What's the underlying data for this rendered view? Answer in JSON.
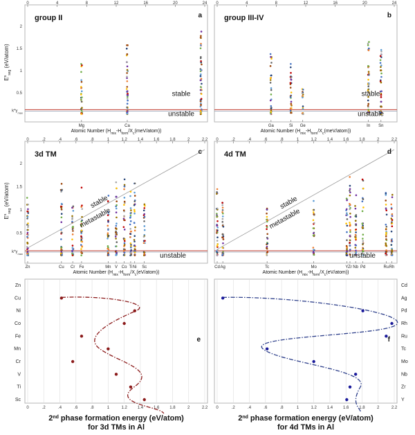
{
  "figure": {
    "ylabel_seg": "E",
    "ylabel_seg_sup": "s",
    "ylabel_seg_sub": "seg",
    "ylabel_seg_unit": "(eV/atom)",
    "kgamma_label": "k*γ",
    "kgamma_sub": "max"
  },
  "chart_data": [
    {
      "type": "scatter",
      "panel": "a",
      "title": "group II",
      "xlabel": "Atomic Number (H",
      "xlabel_sub1": "mix",
      "xlabel_mid": "-H",
      "xlabel_sub2": "form",
      "xlabel_mid2": "/X",
      "xlabel_sub3": "c",
      "xlabel_end": "(meV/atom))",
      "top_ticks": [
        "0",
        "4",
        "8",
        "12",
        "16",
        "20",
        "24"
      ],
      "yticks": [
        "0.5",
        "1",
        "1.5",
        "2"
      ],
      "elements": [
        "Mg",
        "Ca"
      ],
      "regions": [
        "stable",
        "unstable"
      ],
      "threshold_y": 0.12,
      "ylim": [
        0,
        2.3
      ],
      "xlim": [
        0,
        24
      ],
      "columns": [
        {
          "x": 7.3,
          "max": 1.18,
          "n": 28
        },
        {
          "x": 13.5,
          "max": 1.6,
          "n": 45
        },
        {
          "x": 23.5,
          "max": 1.9,
          "n": 60
        }
      ]
    },
    {
      "type": "scatter",
      "panel": "b",
      "title": "group III-IV",
      "xlabel": "Atomic Number (H",
      "xlabel_sub1": "mix",
      "xlabel_mid": "-H",
      "xlabel_sub2": "form",
      "xlabel_mid2": "/X",
      "xlabel_sub3": "c",
      "xlabel_end": "(meV/atom))",
      "top_ticks": [
        "0",
        "4",
        "8",
        "12",
        "16",
        "20",
        "24"
      ],
      "elements": [
        "Ga",
        "Si",
        "Ge",
        "In",
        "Sn"
      ],
      "regions": [
        "stable",
        "unstable"
      ],
      "threshold_y": 0.12,
      "ylim": [
        0,
        2.3
      ],
      "xlim": [
        0,
        24
      ],
      "columns": [
        {
          "x": 7.3,
          "max": 1.38,
          "n": 32
        },
        {
          "x": 10.0,
          "max": 1.25,
          "n": 30
        },
        {
          "x": 11.6,
          "max": 0.6,
          "n": 18
        },
        {
          "x": 20.5,
          "max": 1.68,
          "n": 42
        },
        {
          "x": 22.2,
          "max": 1.52,
          "n": 40
        }
      ]
    },
    {
      "type": "scatter",
      "panel": "c",
      "title": "3d TM",
      "xlabel": "Atomic Number (H",
      "xlabel_sub1": "mix",
      "xlabel_mid": "-H",
      "xlabel_sub2": "form",
      "xlabel_mid2": "/X",
      "xlabel_sub3": "c",
      "xlabel_end": "(eV/atom))",
      "top_ticks": [
        "0",
        ".2",
        ".4",
        ".6",
        ".8",
        "1",
        "1.2",
        "1.4",
        "1.6",
        "1.8",
        "2",
        "2.2"
      ],
      "yticks": [
        "0.5",
        "1",
        "1.5",
        "2"
      ],
      "elements": [
        "Zn",
        "Cu",
        "Cr",
        "Fe",
        "Mn",
        "V",
        "Co",
        "Ti",
        "Ni",
        "Sc"
      ],
      "element_x": [
        0.0,
        0.42,
        0.56,
        0.67,
        1.0,
        1.1,
        1.2,
        1.28,
        1.33,
        1.45
      ],
      "regions": [
        "stable",
        "metastable",
        "unstable"
      ],
      "threshold_y": 0.12,
      "ylim": [
        0,
        2.3
      ],
      "xlim": [
        0,
        2.2
      ],
      "diagonal": [
        [
          0,
          0.18
        ],
        [
          2.2,
          2.3
        ]
      ],
      "columns": [
        {
          "x": 0.0,
          "max": 1.3,
          "n": 38
        },
        {
          "x": 0.42,
          "max": 1.6,
          "n": 40
        },
        {
          "x": 0.56,
          "max": 1.1,
          "n": 30
        },
        {
          "x": 0.67,
          "max": 1.5,
          "n": 34
        },
        {
          "x": 1.0,
          "max": 1.32,
          "n": 32
        },
        {
          "x": 1.1,
          "max": 1.6,
          "n": 38
        },
        {
          "x": 1.2,
          "max": 1.7,
          "n": 40
        },
        {
          "x": 1.28,
          "max": 1.42,
          "n": 34
        },
        {
          "x": 1.33,
          "max": 1.6,
          "n": 36
        },
        {
          "x": 1.45,
          "max": 1.2,
          "n": 30
        }
      ]
    },
    {
      "type": "scatter",
      "panel": "d",
      "title": "4d TM",
      "xlabel": "Atomic Number (H",
      "xlabel_sub1": "mix",
      "xlabel_mid": "-H",
      "xlabel_sub2": "form",
      "xlabel_mid2": "/X",
      "xlabel_sub3": "c",
      "xlabel_end": "(eV/atom))",
      "top_ticks": [
        "0",
        ".2",
        ".4",
        ".6",
        ".8",
        "1",
        "1.2",
        "1.4",
        "1.6",
        "1.8",
        "2",
        "2.2"
      ],
      "elements": [
        "Cd",
        "Ag",
        "Tc",
        "Mo",
        "Y",
        "Zr",
        "Nb",
        "Pd",
        "Ru",
        "Rh"
      ],
      "element_x": [
        0.0,
        0.07,
        0.62,
        1.2,
        1.61,
        1.65,
        1.72,
        1.81,
        2.1,
        2.17
      ],
      "regions": [
        "stable",
        "metastable",
        "unstable"
      ],
      "threshold_y": 0.12,
      "ylim": [
        0,
        2.3
      ],
      "xlim": [
        0,
        2.2
      ],
      "diagonal": [
        [
          0,
          0.15
        ],
        [
          2.2,
          2.3
        ]
      ],
      "columns": [
        {
          "x": 0.0,
          "max": 1.45,
          "n": 40
        },
        {
          "x": 0.07,
          "max": 1.2,
          "n": 36
        },
        {
          "x": 0.62,
          "max": 1.1,
          "n": 30
        },
        {
          "x": 1.2,
          "max": 1.25,
          "n": 30
        },
        {
          "x": 1.61,
          "max": 1.3,
          "n": 34
        },
        {
          "x": 1.65,
          "max": 1.8,
          "n": 36
        },
        {
          "x": 1.72,
          "max": 1.4,
          "n": 32
        },
        {
          "x": 1.81,
          "max": 1.7,
          "n": 34
        },
        {
          "x": 2.1,
          "max": 1.4,
          "n": 34
        },
        {
          "x": 2.17,
          "max": 1.4,
          "n": 34
        }
      ]
    },
    {
      "type": "scatter",
      "panel": "e",
      "xlabel_line1": "2",
      "xlabel_line1_sup": "nd",
      "xlabel_line1_rest": " phase formation energy (eV/atom)",
      "xlabel_line2": "for 3d TMs in Al",
      "xticks": [
        "0",
        ".2",
        ".4",
        ".6",
        ".8",
        "1",
        "1.2",
        "1.4",
        "1.6",
        "1.8",
        "2",
        "2.2"
      ],
      "xlim": [
        0,
        2.2
      ],
      "categories": [
        "Zn",
        "Cu",
        "Ni",
        "Co",
        "Fe",
        "Mn",
        "Cr",
        "V",
        "Ti",
        "Sc"
      ],
      "x": [
        null,
        0.42,
        1.33,
        1.2,
        0.67,
        1.0,
        0.56,
        1.1,
        1.28,
        1.45
      ],
      "marker_color": "#8b1a1a",
      "curve_color": "#8b1a1a"
    },
    {
      "type": "scatter",
      "panel": "f",
      "xlabel_line1": "2",
      "xlabel_line1_sup": "nd",
      "xlabel_line1_rest": " phase formation energy (eV/atom)",
      "xlabel_line2": "for 4d TMs in Al",
      "xticks": [
        "0",
        ".2",
        ".4",
        ".6",
        ".8",
        "1",
        "1.2",
        "1.4",
        "1.6",
        "1.8",
        "2",
        "2.2"
      ],
      "xlim": [
        0,
        2.2
      ],
      "categories": [
        "Cd",
        "Ag",
        "Pd",
        "Rh",
        "Ru",
        "Tc",
        "Mo",
        "Nb",
        "Zr",
        "Y"
      ],
      "x": [
        null,
        0.07,
        1.81,
        2.17,
        2.1,
        0.62,
        1.2,
        1.72,
        1.65,
        1.61
      ],
      "marker_color": "#1a1a9b",
      "curve_color": "#2c3e8a"
    }
  ],
  "colors": {
    "threshold": "#c0392b",
    "diagonal": "#999999",
    "frame": "#b5b5b5",
    "grid": "#dddddd",
    "dots": [
      "#4472c4",
      "#ed7d31",
      "#a5a5a5",
      "#ffc000",
      "#5b9bd5",
      "#70ad47",
      "#264478",
      "#9e480e",
      "#636363",
      "#997300",
      "#7030a0",
      "#c00000"
    ]
  }
}
